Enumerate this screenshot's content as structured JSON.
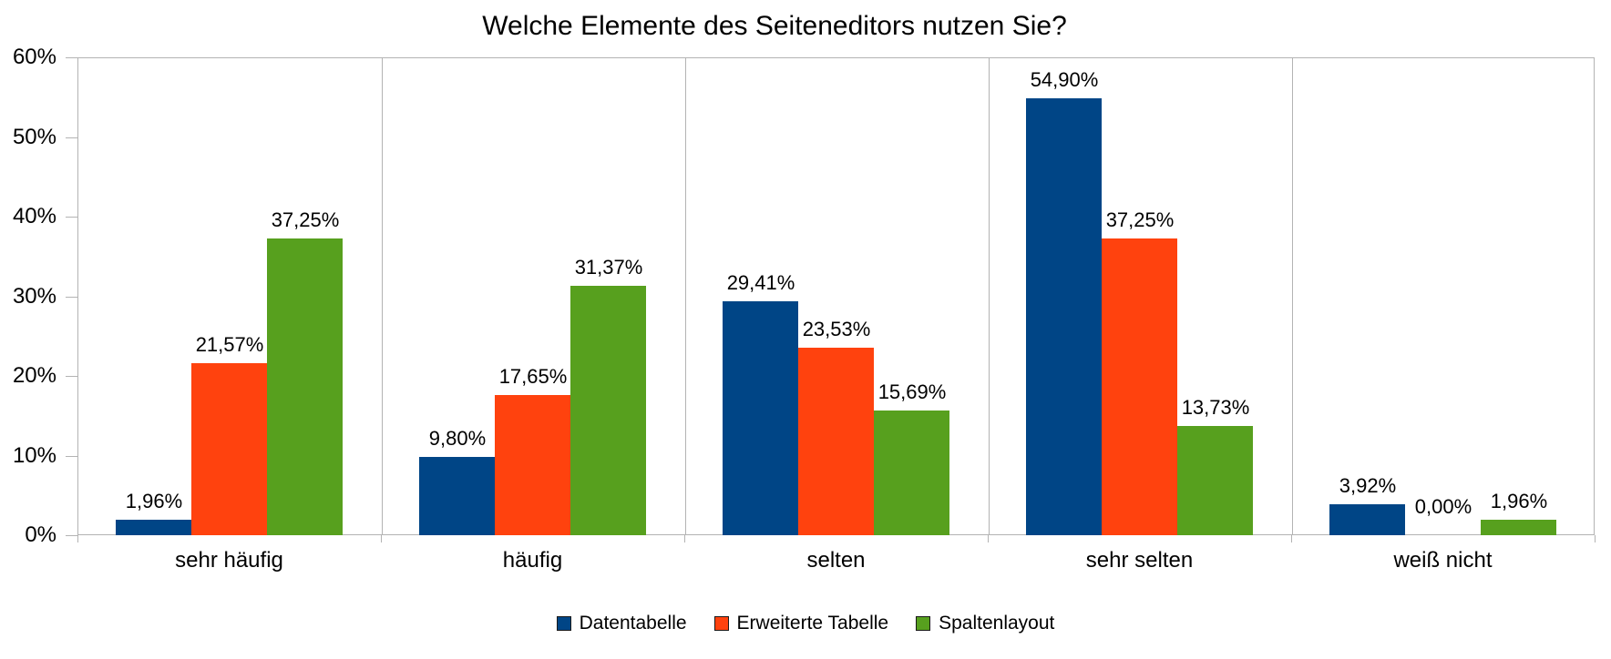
{
  "chart_data": {
    "type": "bar",
    "title": "Welche Elemente des Seiteneditors nutzen Sie?",
    "categories": [
      "sehr häufig",
      "häufig",
      "selten",
      "sehr selten",
      "weiß nicht"
    ],
    "series": [
      {
        "name": "Datentabelle",
        "color": "#004586",
        "values": [
          1.96,
          9.8,
          29.41,
          54.9,
          3.92
        ],
        "labels": [
          "1,96%",
          "9,80%",
          "29,41%",
          "54,90%",
          "3,92%"
        ]
      },
      {
        "name": "Erweiterte Tabelle",
        "color": "#FF420E",
        "values": [
          21.57,
          17.65,
          23.53,
          37.25,
          0.0
        ],
        "labels": [
          "21,57%",
          "17,65%",
          "23,53%",
          "37,25%",
          "0,00%"
        ]
      },
      {
        "name": "Spaltenlayout",
        "color": "#57A01E",
        "values": [
          37.25,
          31.37,
          15.69,
          13.73,
          1.96
        ],
        "labels": [
          "37,25%",
          "31,37%",
          "15,69%",
          "13,73%",
          "1,96%"
        ]
      }
    ],
    "y_axis": {
      "min": 0,
      "max": 60,
      "step": 10,
      "tick_labels": [
        "0%",
        "10%",
        "20%",
        "30%",
        "40%",
        "50%",
        "60%"
      ]
    },
    "legend": {
      "position": "bottom",
      "entries": [
        "Datentabelle",
        "Erweiterte Tabelle",
        "Spaltenlayout"
      ]
    },
    "grid": {
      "horizontal_gridlines": false,
      "vertical_category_separators": true
    },
    "colors": {
      "axis_line": "#b3b3b3",
      "text": "#000000",
      "background": "#ffffff"
    }
  }
}
